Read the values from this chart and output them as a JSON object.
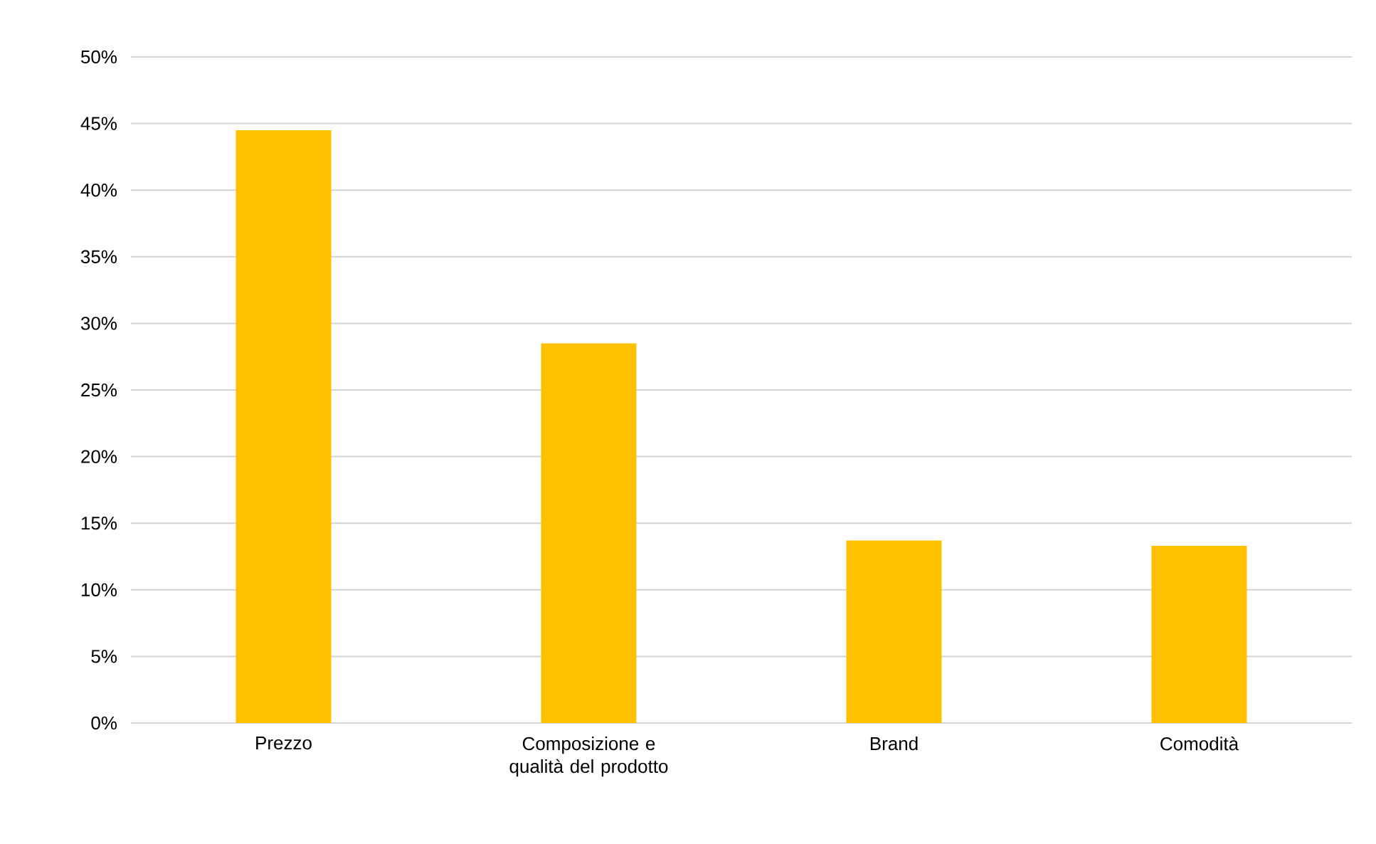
{
  "chart_data": {
    "type": "bar",
    "categories": [
      "Prezzo",
      "Composizione e qualità del prodotto",
      "Brand",
      "Comodità"
    ],
    "values": [
      44.5,
      28.5,
      13.7,
      13.3
    ],
    "color": "#ffc000",
    "ylim": [
      0,
      50
    ],
    "yticks": [
      {
        "value": 0,
        "label": "0%"
      },
      {
        "value": 5,
        "label": "5%"
      },
      {
        "value": 10,
        "label": "10%"
      },
      {
        "value": 15,
        "label": "15%"
      },
      {
        "value": 20,
        "label": "20%"
      },
      {
        "value": 25,
        "label": "25%"
      },
      {
        "value": 30,
        "label": "30%"
      },
      {
        "value": 35,
        "label": "35%"
      },
      {
        "value": 40,
        "label": "40%"
      },
      {
        "value": 45,
        "label": "45%"
      },
      {
        "value": 50,
        "label": "50%"
      }
    ],
    "grid": "y"
  }
}
